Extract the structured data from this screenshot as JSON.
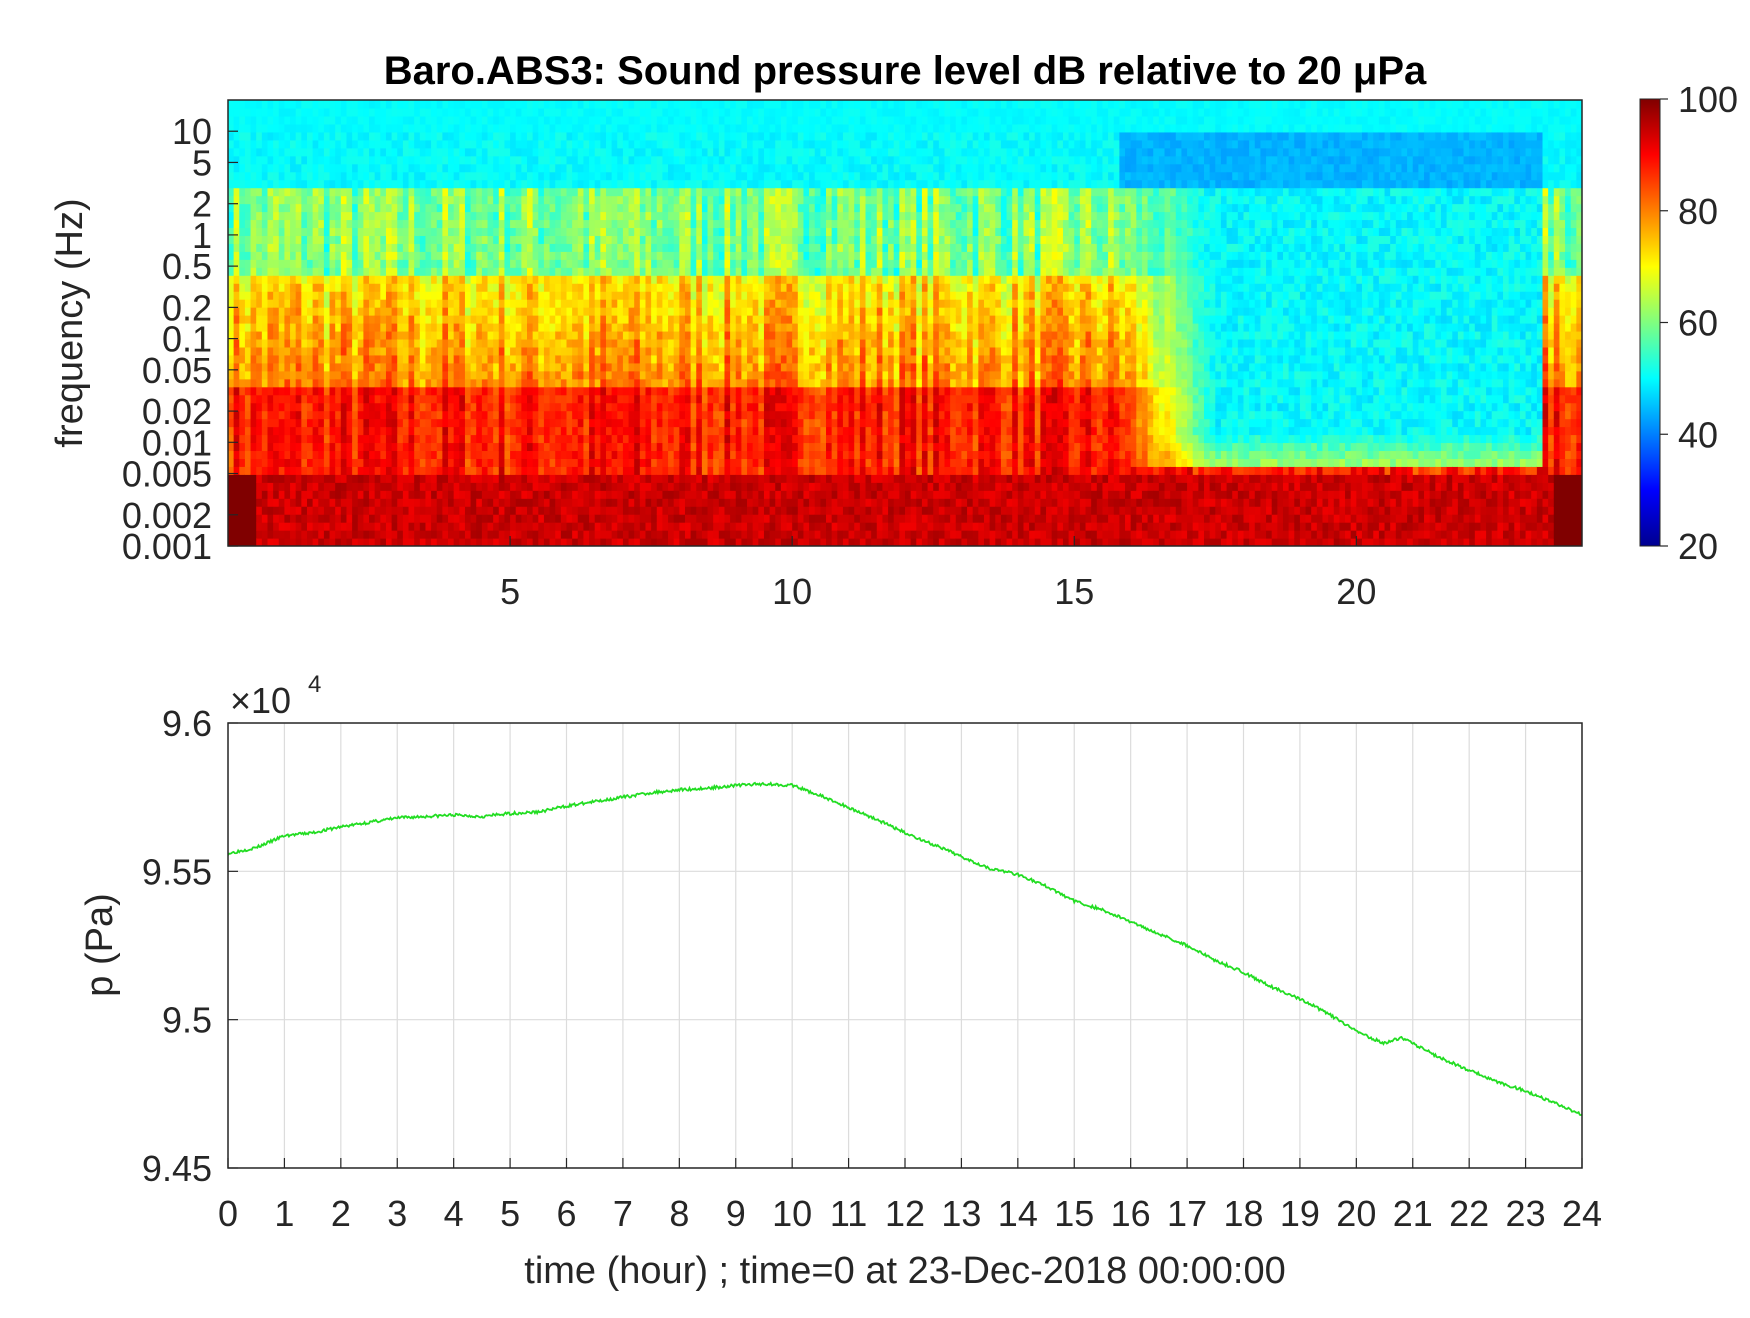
{
  "chart_data": [
    {
      "type": "heatmap",
      "title": "Baro.ABS3: Sound pressure level dB relative to 20 μPa",
      "xlabel": "",
      "ylabel": "frequency (Hz)",
      "x_ticks": [
        "5",
        "10",
        "15",
        "20"
      ],
      "x_range": [
        0,
        24
      ],
      "y_ticks": [
        "0.001",
        "0.002",
        "0.005",
        "0.01",
        "0.02",
        "0.05",
        "0.1",
        "0.2",
        "0.5",
        "1",
        "2",
        "5",
        "10"
      ],
      "y_range_hz": [
        0.001,
        20
      ],
      "y_scale": "log",
      "colorbar": {
        "ticks": [
          "20",
          "40",
          "60",
          "80",
          "100"
        ],
        "range": [
          20,
          100
        ],
        "colormap": "jet"
      },
      "approx_levels": [
        {
          "time_hour": 2,
          "low_freq_db": 95,
          "mid_freq_db": 85,
          "high_freq_db": 55
        },
        {
          "time_hour": 8,
          "low_freq_db": 95,
          "mid_freq_db": 85,
          "high_freq_db": 55
        },
        {
          "time_hour": 14,
          "low_freq_db": 93,
          "mid_freq_db": 80,
          "high_freq_db": 55
        },
        {
          "time_hour": 20,
          "low_freq_db": 92,
          "mid_freq_db": 55,
          "high_freq_db": 48
        }
      ]
    },
    {
      "type": "line",
      "title": "",
      "xlabel": "time (hour) ; time=0 at 23-Dec-2018 00:00:00",
      "ylabel": "p (Pa)",
      "y_exponent_label": "×10",
      "y_exponent": "4",
      "x_ticks": [
        "0",
        "1",
        "2",
        "3",
        "4",
        "5",
        "6",
        "7",
        "8",
        "9",
        "10",
        "11",
        "12",
        "13",
        "14",
        "15",
        "16",
        "17",
        "18",
        "19",
        "20",
        "21",
        "22",
        "23",
        "24"
      ],
      "y_ticks": [
        "9.45",
        "9.5",
        "9.55",
        "9.6"
      ],
      "xlim": [
        0,
        24
      ],
      "ylim": [
        94500,
        96000
      ],
      "grid": true,
      "series": [
        {
          "color": "#22dd22",
          "x": [
            0,
            0.5,
            1,
            1.5,
            2,
            2.5,
            3,
            3.5,
            4,
            4.5,
            5,
            5.5,
            6,
            6.5,
            7,
            7.5,
            8,
            8.5,
            9,
            9.5,
            10,
            10.5,
            11,
            11.5,
            12,
            12.5,
            13,
            13.5,
            14,
            14.5,
            15,
            15.5,
            16,
            16.5,
            17,
            17.5,
            18,
            18.5,
            19,
            19.5,
            20,
            20.5,
            20.8,
            21,
            21.5,
            22,
            22.5,
            23,
            23.5,
            24
          ],
          "y": [
            95560,
            95580,
            95620,
            95630,
            95650,
            95665,
            95680,
            95685,
            95690,
            95685,
            95695,
            95700,
            95720,
            95735,
            95750,
            95765,
            95775,
            95780,
            95790,
            95795,
            95790,
            95755,
            95715,
            95675,
            95630,
            95590,
            95550,
            95510,
            95490,
            95450,
            95400,
            95370,
            95330,
            95290,
            95250,
            95200,
            95160,
            95110,
            95070,
            95020,
            94960,
            94920,
            94940,
            94920,
            94870,
            94830,
            94790,
            94760,
            94720,
            94680
          ]
        }
      ]
    }
  ]
}
